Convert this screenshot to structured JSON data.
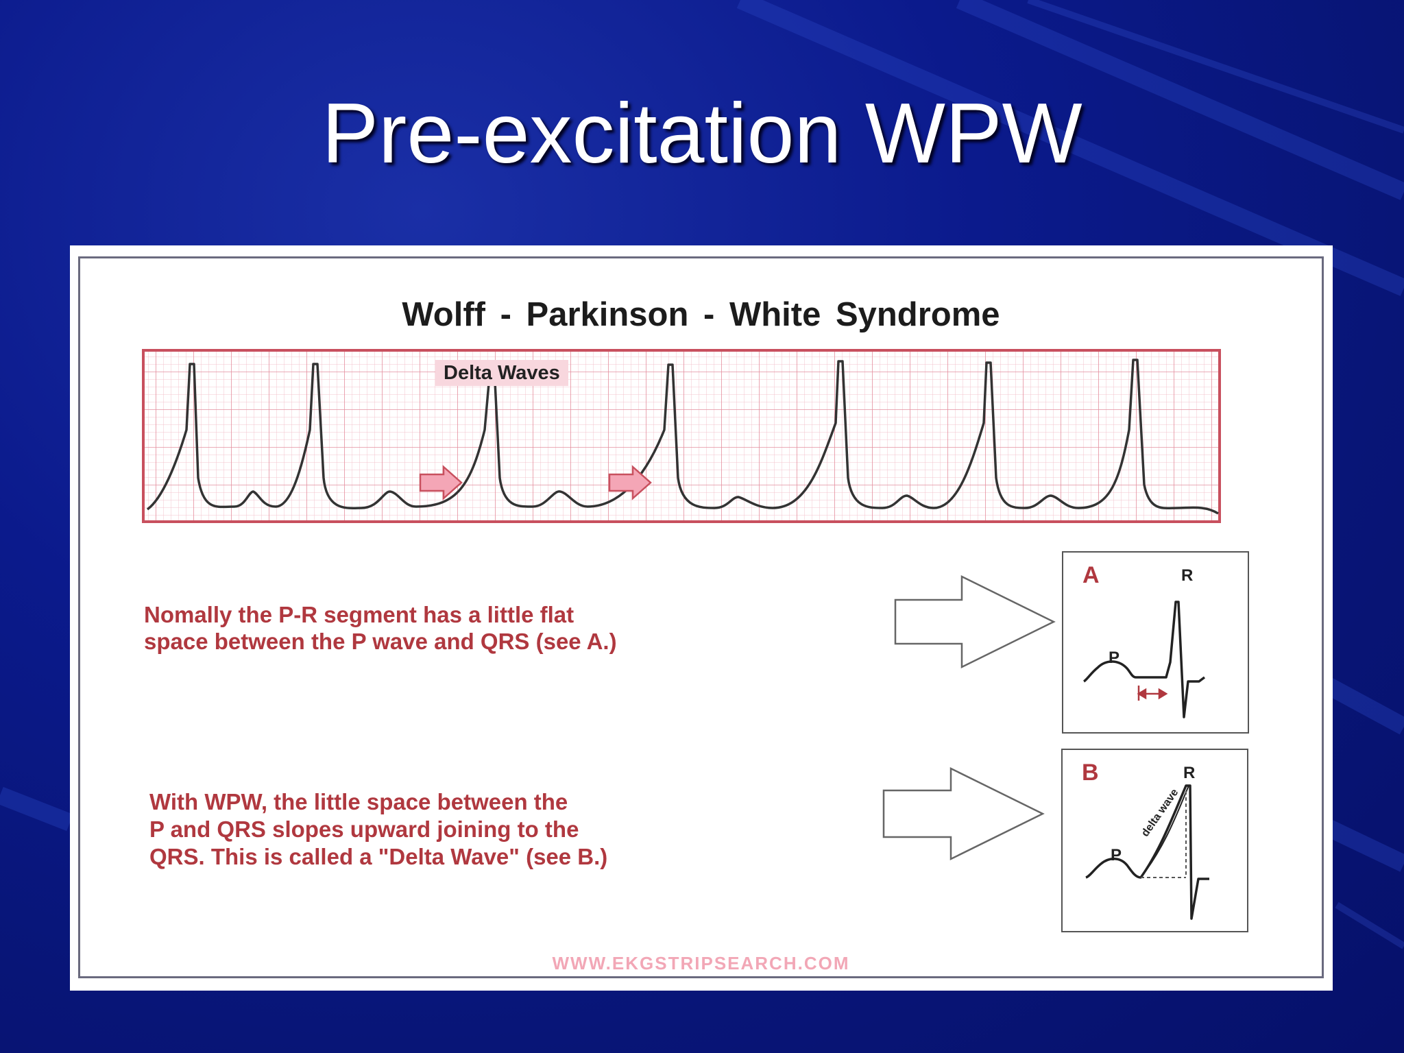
{
  "slide": {
    "title": "Pre-excitation WPW"
  },
  "figure": {
    "title": "Wolff - Parkinson - White   Syndrome",
    "strip_label": "Delta Waves",
    "desc_a": "Nomally the P-R segment has a little flat\nspace between the P wave and QRS (see A.)",
    "desc_b": "With WPW, the little space between the\nP and QRS slopes upward joining to the\nQRS. This is called a \"Delta Wave\" (see B.)",
    "box_a": {
      "letter": "A",
      "r_label": "R",
      "p_label": "P"
    },
    "box_b": {
      "letter": "B",
      "r_label": "R",
      "p_label": "P",
      "wave_label": "delta wave"
    },
    "watermark": "WWW.EKGSTRIPSEARCH.COM"
  },
  "colors": {
    "accent_red": "#b0383f",
    "grid": "#e9a6b2",
    "strip_border": "#c8505e",
    "arrow_pink": "#f4a6b6"
  }
}
